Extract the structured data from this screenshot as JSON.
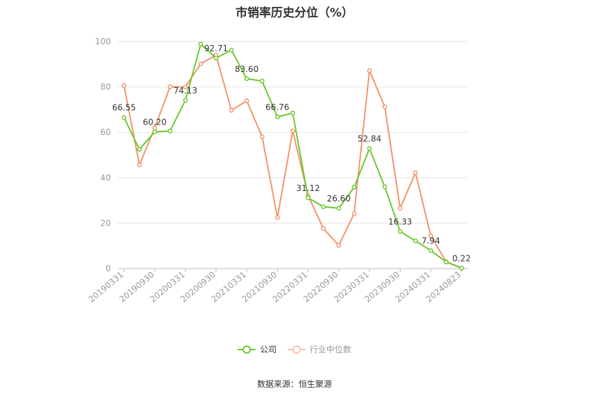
{
  "chart_data": {
    "type": "line",
    "title": "市销率历史分位（%）",
    "source_text": "数据来源：恒生聚源",
    "ylim": [
      0,
      100
    ],
    "yticks": [
      "0",
      "20",
      "40",
      "60",
      "80",
      "100"
    ],
    "x_tick_labels": [
      "20190331",
      "20190930",
      "20200331",
      "20200930",
      "20210331",
      "20210930",
      "20220331",
      "20220930",
      "20230331",
      "20230930",
      "20240331",
      "20240823"
    ],
    "x": [
      "20190331",
      "20190630",
      "20190930",
      "20191231",
      "20200331",
      "20200630",
      "20200930",
      "20201231",
      "20210331",
      "20210630",
      "20210930",
      "20211231",
      "20220331",
      "20220630",
      "20220930",
      "20221231",
      "20230331",
      "20230630",
      "20230930",
      "20231231",
      "20240331",
      "20240630",
      "20240823"
    ],
    "grid": true,
    "legend_position": "bottom",
    "series": [
      {
        "name": "公司",
        "color": "#6cc832",
        "values": [
          66.55,
          52.5,
          60.2,
          60.6,
          74.13,
          98.9,
          92.71,
          96.2,
          83.6,
          82.6,
          66.76,
          68.5,
          31.12,
          27.2,
          26.6,
          35.8,
          52.84,
          36.0,
          16.33,
          12.2,
          7.94,
          2.9,
          0.22
        ],
        "labels": [
          "66.55",
          "",
          "60.20",
          "",
          "74.13",
          "",
          "92.71",
          "",
          "83.60",
          "",
          "66.76",
          "",
          "31.12",
          "",
          "26.60",
          "",
          "52.84",
          "",
          "16.33",
          "",
          "7.94",
          "",
          "0.22"
        ]
      },
      {
        "name": "行业中位数",
        "color": "#f2956b",
        "values": [
          80.6,
          45.7,
          61.9,
          80.1,
          80.0,
          90.2,
          94.0,
          69.7,
          73.9,
          58.1,
          22.5,
          60.6,
          32.1,
          17.6,
          10.2,
          24.2,
          87.2,
          71.2,
          26.6,
          42.2,
          14.3,
          3.1,
          0.2
        ]
      }
    ]
  }
}
